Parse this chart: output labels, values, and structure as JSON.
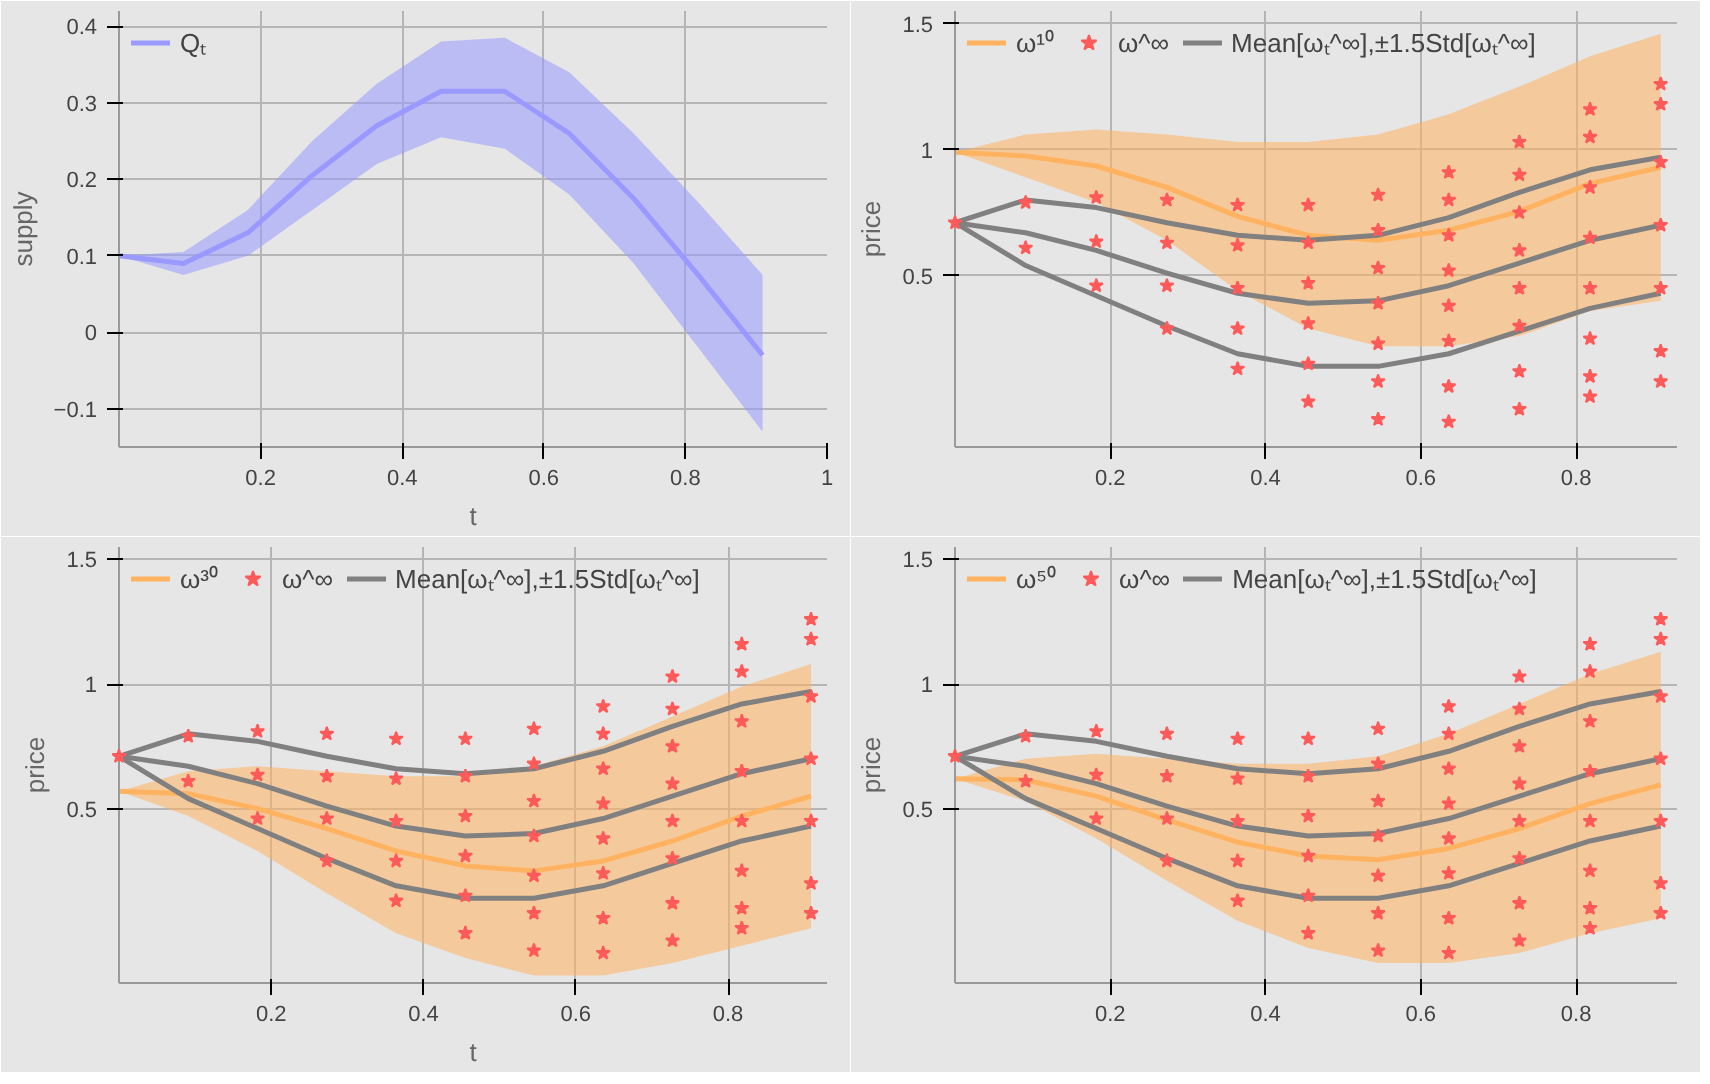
{
  "chart_data": [
    {
      "type": "line",
      "xlabel": "t",
      "ylabel": "supply",
      "xlim": [
        0,
        1.0
      ],
      "ylim": [
        -0.15,
        0.42
      ],
      "xticks": [
        0.2,
        0.4,
        0.6,
        0.8,
        1.0
      ],
      "yticks": [
        -0.1,
        0.0,
        0.1,
        0.2,
        0.3,
        0.4
      ],
      "grid": true,
      "legend": "top left",
      "x": [
        0,
        0.091,
        0.182,
        0.273,
        0.364,
        0.455,
        0.545,
        0.636,
        0.727,
        0.818,
        0.909
      ],
      "series": [
        {
          "name": "Qₜ",
          "color": "#9999ff",
          "values": [
            0.1,
            0.09,
            0.13,
            0.205,
            0.27,
            0.315,
            0.315,
            0.26,
            0.175,
            0.075,
            -0.03
          ],
          "lower": [
            0.1,
            0.075,
            0.1,
            0.16,
            0.22,
            0.255,
            0.24,
            0.18,
            0.09,
            -0.02,
            -0.13
          ],
          "upper": [
            0.1,
            0.105,
            0.16,
            0.25,
            0.325,
            0.38,
            0.385,
            0.34,
            0.26,
            0.17,
            0.075
          ]
        }
      ]
    },
    {
      "type": "line",
      "ylabel": "price",
      "xlim": [
        0,
        0.93
      ],
      "ylim": [
        -0.18,
        1.55
      ],
      "xticks": [
        0.2,
        0.4,
        0.6,
        0.8
      ],
      "yticks": [
        0.5,
        1.0,
        1.5
      ],
      "grid": true,
      "legend": "top left",
      "x": [
        0,
        0.091,
        0.182,
        0.273,
        0.364,
        0.455,
        0.545,
        0.636,
        0.727,
        0.818,
        0.909
      ],
      "series": [
        {
          "name": "ω¹⁰",
          "color": "#ffb25f",
          "values": [
            0.99,
            0.975,
            0.935,
            0.85,
            0.735,
            0.66,
            0.64,
            0.68,
            0.755,
            0.865,
            0.93
          ],
          "lower": [
            0.99,
            0.89,
            0.79,
            0.64,
            0.44,
            0.29,
            0.22,
            0.22,
            0.26,
            0.36,
            0.4
          ],
          "upper": [
            0.99,
            1.06,
            1.08,
            1.06,
            1.03,
            1.03,
            1.06,
            1.14,
            1.25,
            1.37,
            1.46
          ]
        },
        {
          "name": "ω^∞",
          "type": "scatter",
          "marker": "star",
          "color": "#ff5a5a",
          "x": [
            0,
            0.091,
            0.091,
            0.182,
            0.182,
            0.182,
            0.273,
            0.273,
            0.273,
            0.273,
            0.364,
            0.364,
            0.364,
            0.364,
            0.364,
            0.455,
            0.455,
            0.455,
            0.455,
            0.455,
            0.455,
            0.545,
            0.545,
            0.545,
            0.545,
            0.545,
            0.545,
            0.545,
            0.636,
            0.636,
            0.636,
            0.636,
            0.636,
            0.636,
            0.636,
            0.636,
            0.727,
            0.727,
            0.727,
            0.727,
            0.727,
            0.727,
            0.727,
            0.727,
            0.818,
            0.818,
            0.818,
            0.818,
            0.818,
            0.818,
            0.818,
            0.818,
            0.909,
            0.909,
            0.909,
            0.909,
            0.909,
            0.909,
            0.909
          ],
          "values": [
            0.71,
            0.79,
            0.61,
            0.81,
            0.635,
            0.46,
            0.8,
            0.63,
            0.46,
            0.29,
            0.78,
            0.62,
            0.45,
            0.29,
            0.13,
            0.78,
            0.63,
            0.47,
            0.31,
            0.15,
            0.0,
            0.82,
            0.68,
            0.53,
            0.39,
            0.23,
            0.08,
            -0.07,
            0.91,
            0.8,
            0.66,
            0.52,
            0.38,
            0.24,
            0.06,
            -0.08,
            1.03,
            0.9,
            0.75,
            0.6,
            0.45,
            0.3,
            0.12,
            -0.03,
            1.16,
            1.05,
            0.85,
            0.65,
            0.45,
            0.25,
            0.1,
            0.02,
            1.26,
            1.18,
            0.95,
            0.7,
            0.45,
            0.2,
            0.08
          ]
        },
        {
          "name": "Mean[ωₜ^∞],±1.5Std[ωₜ^∞]",
          "color": "#808080",
          "values": [
            0.71,
            0.67,
            0.6,
            0.51,
            0.43,
            0.39,
            0.4,
            0.46,
            0.55,
            0.64,
            0.7
          ]
        },
        {
          "color": "#808080",
          "values": [
            0.71,
            0.8,
            0.77,
            0.71,
            0.66,
            0.64,
            0.66,
            0.73,
            0.83,
            0.92,
            0.97
          ]
        },
        {
          "color": "#808080",
          "values": [
            0.71,
            0.54,
            0.42,
            0.3,
            0.19,
            0.14,
            0.14,
            0.19,
            0.28,
            0.37,
            0.43
          ]
        }
      ]
    },
    {
      "type": "line",
      "xlabel": "t",
      "ylabel": "price",
      "xlim": [
        0,
        0.93
      ],
      "ylim": [
        -0.2,
        1.55
      ],
      "xticks": [
        0.2,
        0.4,
        0.6,
        0.8
      ],
      "yticks": [
        0.5,
        1.0,
        1.5
      ],
      "grid": true,
      "legend": "top left",
      "x": [
        0,
        0.091,
        0.182,
        0.273,
        0.364,
        0.455,
        0.545,
        0.636,
        0.727,
        0.818,
        0.909
      ],
      "series": [
        {
          "name": "ω³⁰",
          "color": "#ffb25f",
          "values": [
            0.57,
            0.56,
            0.5,
            0.42,
            0.33,
            0.27,
            0.25,
            0.29,
            0.37,
            0.47,
            0.55
          ],
          "lower": [
            0.57,
            0.47,
            0.33,
            0.16,
            0.0,
            -0.1,
            -0.17,
            -0.17,
            -0.12,
            -0.05,
            0.02
          ],
          "upper": [
            0.57,
            0.65,
            0.67,
            0.65,
            0.63,
            0.63,
            0.67,
            0.75,
            0.87,
            0.99,
            1.08
          ]
        },
        {
          "name": "ω^∞",
          "type": "scatter",
          "marker": "star",
          "color": "#ff5a5a",
          "x": [
            0,
            0.091,
            0.091,
            0.182,
            0.182,
            0.182,
            0.273,
            0.273,
            0.273,
            0.273,
            0.364,
            0.364,
            0.364,
            0.364,
            0.364,
            0.455,
            0.455,
            0.455,
            0.455,
            0.455,
            0.455,
            0.545,
            0.545,
            0.545,
            0.545,
            0.545,
            0.545,
            0.545,
            0.636,
            0.636,
            0.636,
            0.636,
            0.636,
            0.636,
            0.636,
            0.636,
            0.727,
            0.727,
            0.727,
            0.727,
            0.727,
            0.727,
            0.727,
            0.727,
            0.818,
            0.818,
            0.818,
            0.818,
            0.818,
            0.818,
            0.818,
            0.818,
            0.909,
            0.909,
            0.909,
            0.909,
            0.909,
            0.909,
            0.909
          ],
          "values": [
            0.71,
            0.79,
            0.61,
            0.81,
            0.635,
            0.46,
            0.8,
            0.63,
            0.46,
            0.29,
            0.78,
            0.62,
            0.45,
            0.29,
            0.13,
            0.78,
            0.63,
            0.47,
            0.31,
            0.15,
            0.0,
            0.82,
            0.68,
            0.53,
            0.39,
            0.23,
            0.08,
            -0.07,
            0.91,
            0.8,
            0.66,
            0.52,
            0.38,
            0.24,
            0.06,
            -0.08,
            1.03,
            0.9,
            0.75,
            0.6,
            0.45,
            0.3,
            0.12,
            -0.03,
            1.16,
            1.05,
            0.85,
            0.65,
            0.45,
            0.25,
            0.1,
            0.02,
            1.26,
            1.18,
            0.95,
            0.7,
            0.45,
            0.2,
            0.08
          ]
        },
        {
          "name": "Mean[ωₜ^∞],±1.5Std[ωₜ^∞]",
          "color": "#808080",
          "values": [
            0.71,
            0.67,
            0.6,
            0.51,
            0.43,
            0.39,
            0.4,
            0.46,
            0.55,
            0.64,
            0.7
          ]
        },
        {
          "color": "#808080",
          "values": [
            0.71,
            0.8,
            0.77,
            0.71,
            0.66,
            0.64,
            0.66,
            0.73,
            0.83,
            0.92,
            0.97
          ]
        },
        {
          "color": "#808080",
          "values": [
            0.71,
            0.54,
            0.42,
            0.3,
            0.19,
            0.14,
            0.14,
            0.19,
            0.28,
            0.37,
            0.43
          ]
        }
      ]
    },
    {
      "type": "line",
      "ylabel": "price",
      "xlim": [
        0,
        0.93
      ],
      "ylim": [
        -0.2,
        1.55
      ],
      "xticks": [
        0.2,
        0.4,
        0.6,
        0.8
      ],
      "yticks": [
        0.5,
        1.0,
        1.5
      ],
      "grid": true,
      "legend": "top left",
      "x": [
        0,
        0.091,
        0.182,
        0.273,
        0.364,
        0.455,
        0.545,
        0.636,
        0.727,
        0.818,
        0.909
      ],
      "series": [
        {
          "name": "ω⁵⁰",
          "color": "#ffb25f",
          "values": [
            0.62,
            0.615,
            0.55,
            0.455,
            0.365,
            0.31,
            0.295,
            0.34,
            0.42,
            0.52,
            0.595
          ],
          "lower": [
            0.62,
            0.53,
            0.38,
            0.21,
            0.05,
            -0.06,
            -0.12,
            -0.12,
            -0.08,
            0.0,
            0.06
          ],
          "upper": [
            0.62,
            0.7,
            0.72,
            0.7,
            0.68,
            0.68,
            0.71,
            0.8,
            0.92,
            1.04,
            1.13
          ]
        },
        {
          "name": "ω^∞",
          "type": "scatter",
          "marker": "star",
          "color": "#ff5a5a",
          "x": [
            0,
            0.091,
            0.091,
            0.182,
            0.182,
            0.182,
            0.273,
            0.273,
            0.273,
            0.273,
            0.364,
            0.364,
            0.364,
            0.364,
            0.364,
            0.455,
            0.455,
            0.455,
            0.455,
            0.455,
            0.455,
            0.545,
            0.545,
            0.545,
            0.545,
            0.545,
            0.545,
            0.545,
            0.636,
            0.636,
            0.636,
            0.636,
            0.636,
            0.636,
            0.636,
            0.636,
            0.727,
            0.727,
            0.727,
            0.727,
            0.727,
            0.727,
            0.727,
            0.727,
            0.818,
            0.818,
            0.818,
            0.818,
            0.818,
            0.818,
            0.818,
            0.818,
            0.909,
            0.909,
            0.909,
            0.909,
            0.909,
            0.909,
            0.909
          ],
          "values": [
            0.71,
            0.79,
            0.61,
            0.81,
            0.635,
            0.46,
            0.8,
            0.63,
            0.46,
            0.29,
            0.78,
            0.62,
            0.45,
            0.29,
            0.13,
            0.78,
            0.63,
            0.47,
            0.31,
            0.15,
            0.0,
            0.82,
            0.68,
            0.53,
            0.39,
            0.23,
            0.08,
            -0.07,
            0.91,
            0.8,
            0.66,
            0.52,
            0.38,
            0.24,
            0.06,
            -0.08,
            1.03,
            0.9,
            0.75,
            0.6,
            0.45,
            0.3,
            0.12,
            -0.03,
            1.16,
            1.05,
            0.85,
            0.65,
            0.45,
            0.25,
            0.1,
            0.02,
            1.26,
            1.18,
            0.95,
            0.7,
            0.45,
            0.2,
            0.08
          ]
        },
        {
          "name": "Mean[ωₜ^∞],±1.5Std[ωₜ^∞]",
          "color": "#808080",
          "values": [
            0.71,
            0.67,
            0.6,
            0.51,
            0.43,
            0.39,
            0.4,
            0.46,
            0.55,
            0.64,
            0.7
          ]
        },
        {
          "color": "#808080",
          "values": [
            0.71,
            0.8,
            0.77,
            0.71,
            0.66,
            0.64,
            0.66,
            0.73,
            0.83,
            0.92,
            0.97
          ]
        },
        {
          "color": "#808080",
          "values": [
            0.71,
            0.54,
            0.42,
            0.3,
            0.19,
            0.14,
            0.14,
            0.19,
            0.28,
            0.37,
            0.43
          ]
        }
      ]
    }
  ]
}
